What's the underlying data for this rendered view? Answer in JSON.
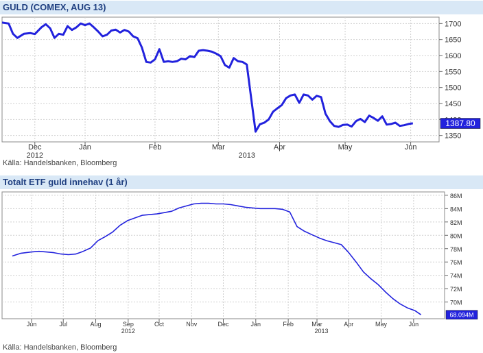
{
  "charts_meta": {
    "chart1_title": "GULD (COMEX, AUG 13)",
    "chart1_source": "Källa: Handelsbanken, Bloomberg",
    "chart2_title": "Totalt ETF guld innehav (1 år)",
    "chart2_source": "Källa: Handelsbanken, Bloomberg",
    "line_color": "#2222dd",
    "header_bg": "#d9e8f6",
    "title_color": "#1f3f80"
  },
  "chart_data": [
    {
      "type": "line",
      "title": "GULD (COMEX, AUG 13)",
      "ylim": [
        1330,
        1720
      ],
      "yticks": [
        1350,
        1400,
        1450,
        1500,
        1550,
        1600,
        1650,
        1700
      ],
      "last_value_label": "1387.80",
      "last_value": 1387.8,
      "xlim": [
        -15,
        185
      ],
      "month_ticks": [
        {
          "label": "Dec",
          "x": 0
        },
        {
          "label": "Jan",
          "x": 23
        },
        {
          "label": "Feb",
          "x": 55
        },
        {
          "label": "Mar",
          "x": 84
        },
        {
          "label": "Apr",
          "x": 112
        },
        {
          "label": "May",
          "x": 142
        },
        {
          "label": "Jun",
          "x": 172
        }
      ],
      "year_labels": [
        {
          "label": "2012",
          "x": 0
        },
        {
          "label": "2013",
          "x": 97
        }
      ],
      "grid": true,
      "series": [
        {
          "x": [
            -15,
            -12,
            -10,
            -8,
            -5,
            -2,
            0,
            3,
            5,
            7,
            9,
            11,
            13,
            15,
            17,
            19,
            21,
            23,
            25,
            27,
            29,
            31,
            33,
            35,
            37,
            39,
            41,
            43,
            45,
            47,
            49,
            51,
            53,
            55,
            57,
            59,
            61,
            63,
            65,
            67,
            69,
            71,
            73,
            75,
            77,
            79,
            81,
            83,
            85,
            87,
            89,
            91,
            93,
            95,
            97,
            99,
            101,
            103,
            105,
            107,
            109,
            111,
            113,
            115,
            117,
            119,
            121,
            123,
            125,
            127,
            129,
            131,
            133,
            135,
            137,
            139,
            141,
            143,
            145,
            147,
            149,
            151,
            153,
            155,
            157,
            159,
            161,
            163,
            165,
            167,
            169,
            171,
            173
          ],
          "values": [
            1703,
            1700,
            1668,
            1655,
            1668,
            1670,
            1667,
            1688,
            1698,
            1685,
            1655,
            1668,
            1665,
            1692,
            1680,
            1688,
            1700,
            1695,
            1700,
            1688,
            1675,
            1660,
            1665,
            1678,
            1681,
            1672,
            1680,
            1675,
            1660,
            1654,
            1625,
            1580,
            1578,
            1588,
            1620,
            1580,
            1582,
            1580,
            1582,
            1590,
            1588,
            1598,
            1595,
            1615,
            1617,
            1615,
            1612,
            1606,
            1598,
            1570,
            1562,
            1592,
            1582,
            1580,
            1572,
            1467,
            1362,
            1385,
            1390,
            1400,
            1424,
            1435,
            1445,
            1467,
            1475,
            1478,
            1452,
            1478,
            1475,
            1462,
            1474,
            1470,
            1418,
            1395,
            1380,
            1377,
            1383,
            1384,
            1378,
            1395,
            1402,
            1392,
            1412,
            1405,
            1396,
            1410,
            1384,
            1386,
            1390,
            1380,
            1382,
            1386,
            1388
          ]
        }
      ]
    },
    {
      "type": "line",
      "title": "Totalt ETF guld innehav (1 år)",
      "ylim": [
        67.5,
        86.5
      ],
      "yticks": [
        70,
        72,
        74,
        76,
        78,
        80,
        82,
        84,
        86
      ],
      "ytick_labels": [
        "70M",
        "72M",
        "74M",
        "76M",
        "78M",
        "80M",
        "82M",
        "84M",
        "86M"
      ],
      "last_value_label": "68.094M",
      "last_value": 68.094,
      "xlim": [
        -4,
        56
      ],
      "month_ticks": [
        {
          "label": "Jun",
          "x": 0
        },
        {
          "label": "Jul",
          "x": 4.3
        },
        {
          "label": "Aug",
          "x": 8.7
        },
        {
          "label": "Sep",
          "x": 13.1
        },
        {
          "label": "Oct",
          "x": 17.3
        },
        {
          "label": "Nov",
          "x": 21.7
        },
        {
          "label": "Dec",
          "x": 26
        },
        {
          "label": "Jan",
          "x": 30.4
        },
        {
          "label": "Feb",
          "x": 34.8
        },
        {
          "label": "Mar",
          "x": 38.7
        },
        {
          "label": "Apr",
          "x": 43
        },
        {
          "label": "May",
          "x": 47.4
        },
        {
          "label": "Jun",
          "x": 51.8
        }
      ],
      "year_labels": [
        {
          "label": "2012",
          "x": 13.1
        },
        {
          "label": "2013",
          "x": 39.3
        }
      ],
      "grid": true,
      "series": [
        {
          "x": [
            -2.6,
            -1.5,
            0,
            1,
            2,
            3,
            4,
            5,
            6,
            7,
            8,
            9,
            10,
            11,
            12,
            13,
            14,
            15,
            16,
            17,
            18,
            19,
            20,
            21,
            22,
            23,
            24,
            25,
            26,
            27,
            28,
            29,
            30,
            31,
            32,
            33,
            34,
            35,
            36,
            37,
            38,
            39,
            40,
            41,
            42,
            43,
            44,
            45,
            46,
            47,
            48,
            49,
            50,
            51,
            52,
            52.8
          ],
          "values": [
            76.9,
            77.3,
            77.5,
            77.6,
            77.5,
            77.4,
            77.2,
            77.1,
            77.2,
            77.6,
            78.1,
            79.2,
            79.8,
            80.5,
            81.5,
            82.2,
            82.6,
            83.0,
            83.1,
            83.2,
            83.4,
            83.6,
            84.1,
            84.4,
            84.7,
            84.8,
            84.8,
            84.7,
            84.7,
            84.6,
            84.4,
            84.2,
            84.1,
            84.0,
            84.0,
            84.0,
            83.9,
            83.5,
            81.3,
            80.6,
            80.1,
            79.6,
            79.2,
            78.9,
            78.6,
            77.4,
            76.0,
            74.5,
            73.5,
            72.6,
            71.5,
            70.5,
            69.7,
            69.1,
            68.7,
            68.1
          ]
        }
      ]
    }
  ]
}
